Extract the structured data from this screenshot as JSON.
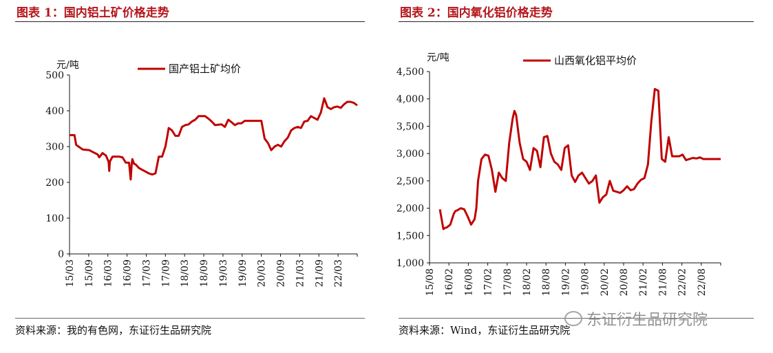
{
  "figures": [
    {
      "title": "图表 1：国内铝土矿价格走势",
      "source": "资料来源：我的有色网，东证衍生品研究院"
    },
    {
      "title": "图表 2：国内氧化铝价格走势",
      "source": "资料来源：Wind，东证衍生品研究院"
    }
  ],
  "watermark": "东证衍生品研究院",
  "chart_data": [
    {
      "type": "line",
      "unit": "元/吨",
      "ylim": [
        0,
        500
      ],
      "yticks": [
        "0",
        "100",
        "200",
        "300",
        "400",
        "500"
      ],
      "yvalues": [
        0,
        100,
        200,
        300,
        400,
        500
      ],
      "xticks": [
        "15/03",
        "15/09",
        "16/03",
        "16/09",
        "17/03",
        "17/09",
        "18/03",
        "18/09",
        "19/03",
        "19/09",
        "20/03",
        "20/09",
        "21/03",
        "21/09",
        "22/03"
      ],
      "xlim": [
        0,
        87
      ],
      "grid": false,
      "legend_position": "top-center",
      "color": "#c00000",
      "series": [
        {
          "name": "国产铝土矿均价",
          "x": [
            0,
            1.5,
            2,
            3,
            4,
            6,
            7,
            8.5,
            9,
            10,
            10.5,
            11,
            11.8,
            12,
            12.2,
            13,
            15,
            16,
            17,
            18,
            18.5,
            18.8,
            19,
            19.5,
            20,
            21,
            22,
            23,
            24,
            25,
            26,
            27,
            28,
            29,
            29.5,
            30,
            31,
            32,
            33,
            34,
            35,
            36,
            37,
            38,
            39,
            40,
            41,
            42,
            43,
            44,
            46,
            47,
            48,
            49,
            50,
            51,
            52,
            53,
            54,
            55,
            56,
            57,
            58,
            59,
            60,
            61,
            62,
            63,
            64,
            65,
            66,
            67,
            68,
            69,
            70,
            71,
            72,
            73,
            74,
            75,
            76,
            77,
            78,
            79,
            80,
            81,
            82,
            83,
            84,
            85,
            86,
            87
          ],
          "values": [
            332,
            332,
            305,
            298,
            292,
            290,
            285,
            278,
            270,
            282,
            278,
            275,
            258,
            232,
            258,
            272,
            272,
            270,
            255,
            255,
            208,
            250,
            265,
            252,
            250,
            240,
            235,
            230,
            225,
            222,
            225,
            272,
            272,
            300,
            325,
            352,
            345,
            330,
            330,
            355,
            360,
            362,
            370,
            375,
            385,
            385,
            385,
            378,
            370,
            360,
            362,
            355,
            375,
            368,
            360,
            365,
            365,
            372,
            372,
            372,
            372,
            372,
            372,
            322,
            310,
            290,
            300,
            305,
            300,
            315,
            325,
            345,
            352,
            355,
            352,
            370,
            372,
            385,
            380,
            375,
            395,
            435,
            410,
            405,
            410,
            412,
            408,
            418,
            425,
            425,
            422,
            415
          ]
        }
      ]
    },
    {
      "type": "line",
      "unit": "元/吨",
      "ylim": [
        1000,
        4500
      ],
      "yticks": [
        "1,000",
        "1,500",
        "2,000",
        "2,500",
        "3,000",
        "3,500",
        "4,000",
        "4,500"
      ],
      "yvalues": [
        1000,
        1500,
        2000,
        2500,
        3000,
        3500,
        4000,
        4500
      ],
      "xticks": [
        "15/08",
        "16/02",
        "16/08",
        "17/02",
        "17/08",
        "18/02",
        "18/08",
        "19/02",
        "19/08",
        "20/02",
        "20/08",
        "21/02",
        "21/08",
        "22/02",
        "22/08"
      ],
      "xlim": [
        0,
        84
      ],
      "grid": false,
      "legend_position": "top-center",
      "color": "#c00000",
      "series": [
        {
          "name": "山西氧化铝平均价",
          "x": [
            3,
            3.5,
            4,
            4.5,
            5,
            6,
            7,
            7.5,
            8,
            9,
            10,
            11,
            12,
            13,
            13.5,
            14,
            15,
            16,
            17,
            18,
            19,
            20,
            21,
            22,
            23,
            24,
            24.5,
            25,
            26,
            27,
            28,
            29,
            30,
            31,
            32,
            33,
            34,
            35,
            36,
            37,
            38,
            39,
            40,
            41,
            42,
            43,
            44,
            45,
            46,
            47,
            48,
            49,
            50,
            51,
            52,
            53,
            54,
            55,
            56,
            57,
            58,
            59,
            60,
            61,
            62,
            63,
            64,
            65,
            66,
            67,
            68,
            69,
            70,
            71,
            72,
            73,
            74,
            75,
            76,
            77,
            78,
            79,
            80,
            81,
            82,
            83,
            84
          ],
          "values": [
            1980,
            1800,
            1620,
            1640,
            1650,
            1700,
            1900,
            1950,
            1960,
            2000,
            1980,
            1850,
            1700,
            1800,
            2000,
            2500,
            2900,
            2980,
            2960,
            2700,
            2300,
            2650,
            2550,
            2500,
            3200,
            3650,
            3780,
            3700,
            3200,
            2900,
            2850,
            2700,
            3100,
            3050,
            2750,
            3300,
            3320,
            3000,
            2850,
            2800,
            2700,
            3100,
            3150,
            2600,
            2480,
            2600,
            2650,
            2550,
            2450,
            2500,
            2600,
            2100,
            2200,
            2250,
            2500,
            2320,
            2300,
            2280,
            2330,
            2400,
            2330,
            2350,
            2450,
            2520,
            2550,
            2800,
            3600,
            4180,
            4150,
            2900,
            2850,
            3300,
            2950,
            2950,
            2950,
            2980,
            2880,
            2900,
            2920,
            2910,
            2930,
            2900,
            2900,
            2900,
            2900,
            2900,
            2900
          ]
        }
      ]
    }
  ]
}
